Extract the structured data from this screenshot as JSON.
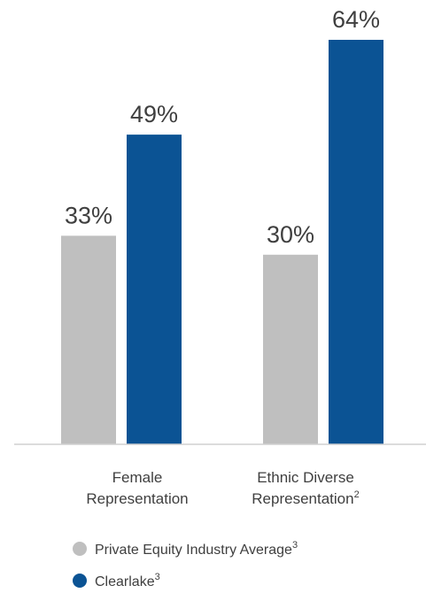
{
  "chart_data": {
    "type": "bar",
    "categories": [
      {
        "line1": "Female",
        "line2": "Representation",
        "sup": ""
      },
      {
        "line1": "Ethnic Diverse",
        "line2": "Representation",
        "sup": "2"
      }
    ],
    "series": [
      {
        "name": "Private Equity Industry Average",
        "sup": "3",
        "color": "#bfbfbf",
        "values": [
          33,
          30
        ],
        "labels": [
          "33%",
          "30%"
        ]
      },
      {
        "name": "Clearlake",
        "sup": "3",
        "color": "#0b5394",
        "values": [
          49,
          64
        ],
        "labels": [
          "49%",
          "64%"
        ]
      }
    ],
    "ylim": [
      0,
      64
    ],
    "grid": false,
    "legend_position": "bottom-left"
  }
}
